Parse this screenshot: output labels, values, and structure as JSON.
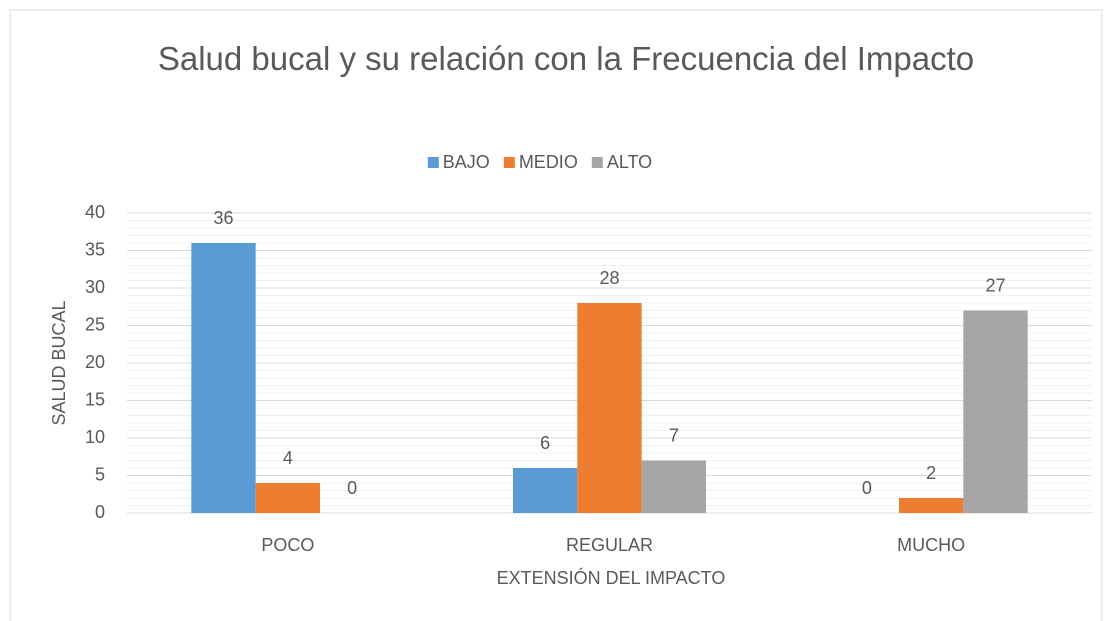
{
  "chart_data": {
    "type": "bar",
    "title": "Salud bucal y su relación con la Frecuencia del Impacto",
    "categories": [
      "POCO",
      "REGULAR",
      "MUCHO"
    ],
    "series": [
      {
        "name": "BAJO",
        "color": "#5b9bd5",
        "values": [
          36,
          6,
          0
        ]
      },
      {
        "name": "MEDIO",
        "color": "#ed7d31",
        "values": [
          4,
          28,
          2
        ]
      },
      {
        "name": "ALTO",
        "color": "#a5a5a5",
        "values": [
          0,
          7,
          27
        ]
      }
    ],
    "ylim": [
      0,
      40
    ],
    "yticks": [
      0,
      5,
      10,
      15,
      20,
      25,
      30,
      35,
      40
    ],
    "ylabel": "SALUD BUCAL",
    "xlabel": "EXTENSIÓN DEL IMPACTO",
    "grid": true,
    "minor_grid": true,
    "legend": "top",
    "data_labels": true
  }
}
